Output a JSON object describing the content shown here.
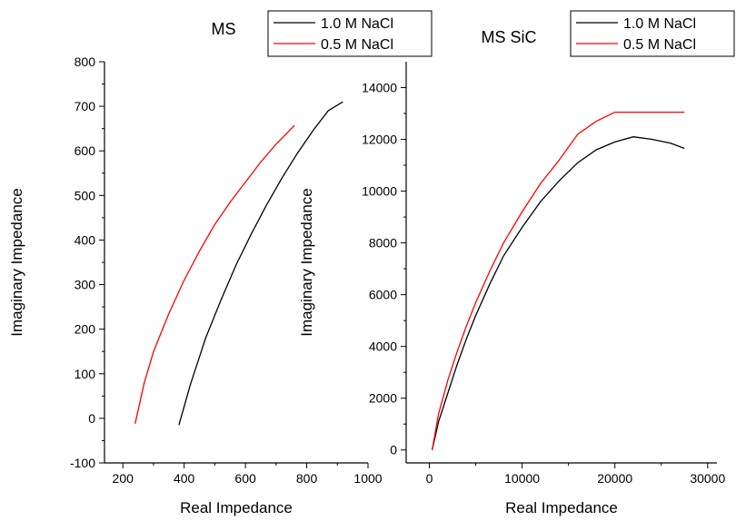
{
  "chart_data": [
    {
      "type": "line",
      "title": "MS",
      "xlabel": "Real Impedance",
      "ylabel": "Imaginary Impedance",
      "xlim": [
        140,
        1000
      ],
      "ylim": [
        -100,
        800
      ],
      "x_ticks": [
        "200",
        "400",
        "600",
        "800",
        "1000"
      ],
      "y_ticks": [
        "-100",
        "0",
        "100",
        "200",
        "300",
        "400",
        "500",
        "600",
        "700",
        "800"
      ],
      "legend_position": "top-right",
      "series": [
        {
          "name": "1.0 M NaCl",
          "color": "#000000",
          "x": [
            383,
            420,
            470,
            520,
            570,
            620,
            670,
            720,
            770,
            820,
            870,
            918
          ],
          "y": [
            -15,
            75,
            180,
            265,
            345,
            415,
            480,
            540,
            595,
            645,
            690,
            710
          ]
        },
        {
          "name": "0.5 M NaCl",
          "color": "#ff0000",
          "x": [
            240,
            270,
            300,
            350,
            400,
            450,
            500,
            550,
            600,
            650,
            700,
            760
          ],
          "y": [
            -12,
            80,
            150,
            235,
            310,
            375,
            435,
            485,
            530,
            575,
            615,
            657
          ]
        }
      ]
    },
    {
      "type": "line",
      "title": "MS SiC",
      "xlabel": "Real Impedance",
      "ylabel": "Imaginary Impedance",
      "xlim": [
        -2500,
        31000
      ],
      "ylim": [
        -500,
        15000
      ],
      "x_ticks": [
        "0",
        "10000",
        "20000",
        "30000"
      ],
      "y_ticks": [
        "0",
        "2000",
        "4000",
        "6000",
        "8000",
        "10000",
        "12000",
        "14000"
      ],
      "legend_position": "top-right",
      "series": [
        {
          "name": "1.0 M NaCl",
          "color": "#000000",
          "x": [
            300,
            1000,
            2000,
            3000,
            4000,
            5000,
            6500,
            8000,
            10000,
            12000,
            14000,
            16000,
            18000,
            20000,
            22000,
            24000,
            26000,
            27500
          ],
          "y": [
            0,
            1100,
            2200,
            3300,
            4300,
            5200,
            6400,
            7500,
            8600,
            9600,
            10400,
            11100,
            11600,
            11900,
            12100,
            12000,
            11850,
            11650
          ]
        },
        {
          "name": "0.5 M NaCl",
          "color": "#ff0000",
          "x": [
            300,
            1000,
            2000,
            3000,
            4000,
            5000,
            6500,
            8000,
            10000,
            12000,
            14000,
            16000,
            18000,
            20000,
            22000,
            24000,
            26000,
            27500
          ],
          "y": [
            0,
            1400,
            2700,
            3800,
            4800,
            5700,
            6900,
            8000,
            9200,
            10300,
            11200,
            12200,
            12700,
            13050,
            13050,
            13050,
            13050,
            13050
          ]
        }
      ]
    }
  ]
}
